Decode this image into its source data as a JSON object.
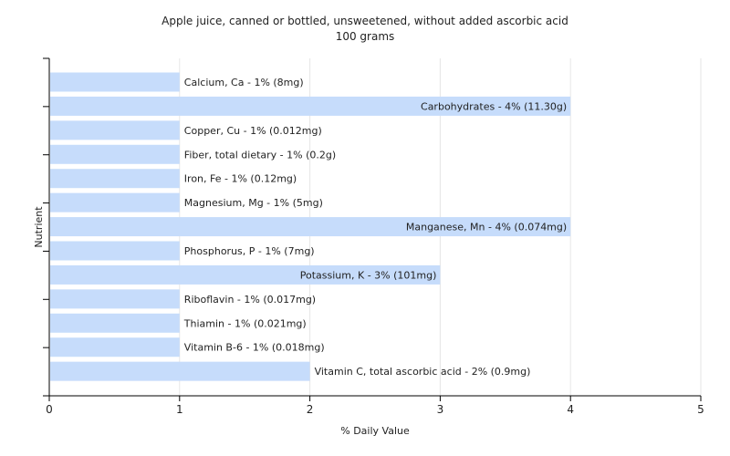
{
  "chart_data": {
    "type": "bar",
    "orientation": "horizontal",
    "title": "Apple juice, canned or bottled, unsweetened, without added ascorbic acid",
    "subtitle": "100 grams",
    "xlabel": "% Daily Value",
    "ylabel": "Nutrient",
    "xlim": [
      0,
      5
    ],
    "xticks": [
      "0",
      "1",
      "2",
      "3",
      "4",
      "5"
    ],
    "grid": true,
    "bar_color": "#c6dcfb",
    "categories": [
      "Calcium, Ca",
      "Carbohydrates",
      "Copper, Cu",
      "Fiber, total dietary",
      "Iron, Fe",
      "Magnesium, Mg",
      "Manganese, Mn",
      "Phosphorus, P",
      "Potassium, K",
      "Riboflavin",
      "Thiamin",
      "Vitamin B-6",
      "Vitamin C, total ascorbic acid"
    ],
    "values": [
      1,
      4,
      1,
      1,
      1,
      1,
      4,
      1,
      3,
      1,
      1,
      1,
      2
    ],
    "labels": [
      "Calcium, Ca - 1% (8mg)",
      "Carbohydrates - 4% (11.30g)",
      "Copper, Cu - 1% (0.012mg)",
      "Fiber, total dietary - 1% (0.2g)",
      "Iron, Fe - 1% (0.12mg)",
      "Magnesium, Mg - 1% (5mg)",
      "Manganese, Mn - 4% (0.074mg)",
      "Phosphorus, P - 1% (7mg)",
      "Potassium, K - 3% (101mg)",
      "Riboflavin - 1% (0.017mg)",
      "Thiamin - 1% (0.021mg)",
      "Vitamin B-6 - 1% (0.018mg)",
      "Vitamin C, total ascorbic acid - 2% (0.9mg)"
    ]
  }
}
